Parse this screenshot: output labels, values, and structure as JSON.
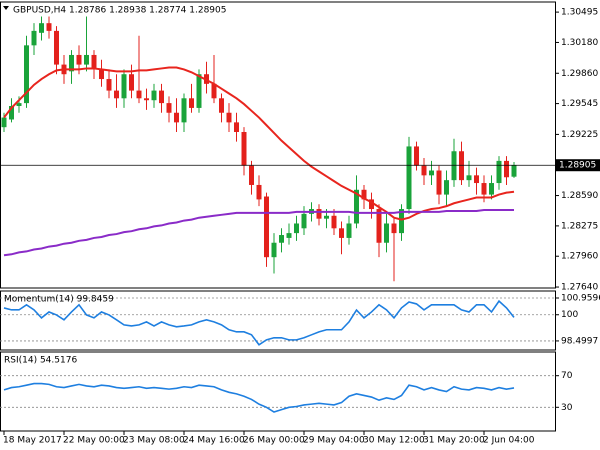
{
  "chart_data": [
    {
      "type": "candlestick",
      "title": "GBPUSD,H4 1.28786 1.28938 1.28774 1.28905",
      "categories": [
        "18 May 2017",
        null,
        null,
        null,
        null,
        null,
        null,
        null,
        "22 May 00:00",
        null,
        null,
        null,
        null,
        null,
        null,
        null,
        "23 May 08:00",
        null,
        null,
        null,
        null,
        null,
        null,
        null,
        "24 May 16:00",
        null,
        null,
        null,
        null,
        null,
        null,
        null,
        "26 May 00:00",
        null,
        null,
        null,
        null,
        null,
        null,
        null,
        "29 May 04:00",
        null,
        null,
        null,
        null,
        null,
        null,
        null,
        "30 May 12:00",
        null,
        null,
        null,
        null,
        null,
        null,
        null,
        "31 May 20:00",
        null,
        null,
        null,
        null,
        null,
        null,
        null,
        "2 Jun 04:00",
        null,
        null,
        null,
        null
      ],
      "open": [
        1.293,
        1.2938,
        1.2952,
        1.2955,
        1.3015,
        1.3028,
        1.3038,
        1.303,
        1.2995,
        1.2988,
        1.3005,
        1.2995,
        1.3005,
        1.299,
        1.298,
        1.2968,
        1.296,
        1.2985,
        1.2968,
        1.296,
        1.2958,
        1.2968,
        1.2955,
        1.2945,
        1.2935,
        1.296,
        1.295,
        1.2985,
        1.2975,
        1.296,
        1.2945,
        1.2935,
        1.2925,
        1.289,
        1.287,
        1.2858,
        1.2795,
        1.281,
        1.2815,
        1.282,
        1.2825,
        1.284,
        1.2845,
        1.2835,
        1.2838,
        1.2825,
        1.2815,
        1.283,
        1.2865,
        1.2855,
        1.2845,
        1.281,
        1.283,
        1.282,
        1.2845,
        1.291,
        1.289,
        1.288,
        1.2885,
        1.286,
        1.2875,
        1.2905,
        1.2875,
        1.288,
        1.2872,
        1.286,
        1.2872,
        1.2895,
        1.28786
      ],
      "high": [
        1.2945,
        1.296,
        1.2962,
        1.3025,
        1.3038,
        1.3045,
        1.3045,
        1.3035,
        1.3005,
        1.301,
        1.3015,
        1.3045,
        1.301,
        1.3,
        1.299,
        1.2985,
        1.299,
        1.2995,
        1.3025,
        1.297,
        1.2975,
        1.2975,
        1.2962,
        1.296,
        1.2965,
        1.2975,
        1.299,
        1.2998,
        1.3005,
        1.2965,
        1.2955,
        1.2945,
        1.293,
        1.2895,
        1.288,
        1.2862,
        1.282,
        1.2825,
        1.283,
        1.2838,
        1.2848,
        1.2852,
        1.285,
        1.2845,
        1.2845,
        1.2832,
        1.2838,
        1.288,
        1.287,
        1.2862,
        1.285,
        1.284,
        1.2835,
        1.285,
        1.292,
        1.2915,
        1.2898,
        1.2895,
        1.289,
        1.2885,
        1.2918,
        1.2915,
        1.2895,
        1.2888,
        1.288,
        1.288,
        1.29,
        1.29,
        1.28938
      ],
      "low": [
        1.2925,
        1.2935,
        1.2945,
        1.295,
        1.3005,
        1.302,
        1.3022,
        1.2985,
        1.2975,
        1.2975,
        1.2985,
        1.2988,
        1.298,
        1.2972,
        1.296,
        1.295,
        1.295,
        1.296,
        1.2955,
        1.2948,
        1.295,
        1.2945,
        1.2935,
        1.2925,
        1.2925,
        1.2945,
        1.2945,
        1.2965,
        1.2955,
        1.2935,
        1.2925,
        1.2915,
        1.288,
        1.286,
        1.2848,
        1.2785,
        1.2778,
        1.28,
        1.2808,
        1.2812,
        1.2818,
        1.2832,
        1.2828,
        1.2825,
        1.2818,
        1.2798,
        1.2808,
        1.2825,
        1.2845,
        1.2835,
        1.2795,
        1.28,
        1.277,
        1.2812,
        1.284,
        1.2885,
        1.287,
        1.287,
        1.285,
        1.2848,
        1.2868,
        1.287,
        1.2868,
        1.286,
        1.2852,
        1.2855,
        1.2865,
        1.287,
        1.28774
      ],
      "close": [
        1.294,
        1.2952,
        1.2955,
        1.3015,
        1.303,
        1.3038,
        1.303,
        1.2995,
        1.2985,
        1.3005,
        1.2995,
        1.3005,
        1.299,
        1.298,
        1.2968,
        1.296,
        1.2985,
        1.2968,
        1.296,
        1.2958,
        1.2968,
        1.2955,
        1.2945,
        1.2935,
        1.296,
        1.295,
        1.2985,
        1.2975,
        1.296,
        1.2945,
        1.2935,
        1.2925,
        1.289,
        1.287,
        1.2855,
        1.2795,
        1.281,
        1.2818,
        1.282,
        1.283,
        1.284,
        1.2845,
        1.2835,
        1.2838,
        1.2825,
        1.2815,
        1.283,
        1.2865,
        1.2855,
        1.2845,
        1.281,
        1.283,
        1.282,
        1.2845,
        1.291,
        1.289,
        1.288,
        1.2885,
        1.286,
        1.2875,
        1.2905,
        1.2875,
        1.288,
        1.2872,
        1.286,
        1.2872,
        1.2895,
        1.2878,
        1.28905
      ],
      "up_color": "#1aa33a",
      "down_color": "#e3211c",
      "lines": [
        {
          "color": "#e8251e",
          "values": [
            1.294,
            1.295,
            1.2958,
            1.2966,
            1.2974,
            1.298,
            1.2985,
            1.2989,
            1.299,
            1.299,
            1.299,
            1.2991,
            1.2991,
            1.299,
            1.2989,
            1.2988,
            1.2988,
            1.2988,
            1.2989,
            1.2989,
            1.299,
            1.2991,
            1.2992,
            1.2992,
            1.299,
            1.2987,
            1.2983,
            1.2979,
            1.2975,
            1.297,
            1.2965,
            1.296,
            1.2954,
            1.2947,
            1.294,
            1.2932,
            1.2924,
            1.2916,
            1.2909,
            1.2902,
            1.2895,
            1.2889,
            1.2884,
            1.2879,
            1.2874,
            1.2869,
            1.2865,
            1.2861,
            1.2856,
            1.2852,
            1.2847,
            1.2842,
            1.2836,
            1.2834,
            1.2836,
            1.284,
            1.2843,
            1.2845,
            1.2846,
            1.2848,
            1.2851,
            1.2853,
            1.2855,
            1.2857,
            1.2857,
            1.2857,
            1.286,
            1.2862,
            1.2863
          ]
        },
        {
          "color": "#8a2bc8",
          "values": [
            1.2797,
            1.2798,
            1.28,
            1.2801,
            1.2803,
            1.2804,
            1.2806,
            1.2807,
            1.2809,
            1.281,
            1.2812,
            1.2813,
            1.2815,
            1.2816,
            1.2818,
            1.2819,
            1.2821,
            1.2822,
            1.2824,
            1.2825,
            1.2827,
            1.2828,
            1.283,
            1.2831,
            1.2833,
            1.2834,
            1.2836,
            1.2837,
            1.2838,
            1.2839,
            1.284,
            1.2841,
            1.2841,
            1.2841,
            1.2841,
            1.2841,
            1.2841,
            1.2841,
            1.2841,
            1.2842,
            1.2842,
            1.2842,
            1.2842,
            1.2842,
            1.2842,
            1.2842,
            1.2842,
            1.2841,
            1.2841,
            1.2841,
            1.2841,
            1.2841,
            1.2841,
            1.2842,
            1.2842,
            1.2842,
            1.2842,
            1.2842,
            1.2842,
            1.2843,
            1.2843,
            1.2843,
            1.2843,
            1.2843,
            1.2844,
            1.2844,
            1.2844,
            1.2844,
            1.2844
          ]
        }
      ],
      "current_price": {
        "value": 1.28905,
        "label": "1.28905"
      },
      "ylim": [
        1.2763,
        1.306
      ],
      "yticks": [
        {
          "value": 1.30495,
          "label": "1.30495"
        },
        {
          "value": 1.3018,
          "label": "1.30180"
        },
        {
          "value": 1.2986,
          "label": "1.29860"
        },
        {
          "value": 1.29545,
          "label": "1.29545"
        },
        {
          "value": 1.29225,
          "label": "1.29225"
        },
        {
          "value": 1.2859,
          "label": "1.28590"
        },
        {
          "value": 1.28275,
          "label": "1.28275"
        },
        {
          "value": 1.2796,
          "label": "1.27960"
        },
        {
          "value": 1.2764,
          "label": "1.27640"
        }
      ]
    },
    {
      "type": "line",
      "title": "Momentum(14) 99.8459",
      "color": "#1e7fe0",
      "values": [
        100.39,
        100.28,
        100.28,
        100.57,
        100.28,
        99.82,
        100.16,
        99.99,
        99.71,
        100.16,
        100.57,
        99.99,
        99.82,
        100.16,
        99.99,
        99.71,
        99.42,
        99.36,
        99.42,
        99.59,
        99.36,
        99.59,
        99.42,
        99.31,
        99.36,
        99.42,
        99.59,
        99.71,
        99.59,
        99.42,
        99.14,
        99.02,
        99.02,
        98.85,
        98.28,
        98.56,
        98.68,
        98.68,
        98.56,
        98.56,
        98.68,
        98.85,
        99.02,
        99.14,
        99.14,
        99.14,
        99.59,
        100.27,
        99.82,
        100.16,
        100.57,
        100.28,
        99.82,
        100.39,
        100.73,
        100.62,
        100.28,
        100.57,
        100.57,
        100.57,
        100.57,
        100.28,
        100.16,
        100.57,
        100.57,
        100.16,
        100.78,
        100.39,
        99.8459
      ],
      "ylim": [
        97.98,
        101.36
      ],
      "yticks": [
        100.9596,
        100,
        98.4997
      ],
      "grid": "dotted"
    },
    {
      "type": "line",
      "title": "RSI(14) 54.5176",
      "color": "#1e7fe0",
      "values": [
        52,
        55,
        56,
        58,
        60,
        60,
        59,
        56,
        55,
        57,
        59,
        57,
        56,
        58,
        57,
        55,
        54,
        55,
        56,
        54,
        55,
        54,
        53,
        54,
        56,
        55,
        58,
        57,
        56,
        52,
        49,
        47,
        44,
        40,
        34,
        30,
        24,
        27,
        30,
        31,
        33,
        34,
        35,
        34,
        33,
        36,
        44,
        47,
        45,
        43,
        39,
        42,
        40,
        45,
        58,
        56,
        52,
        55,
        52,
        50,
        56,
        53,
        52,
        55,
        54,
        52,
        55,
        53,
        54.5176
      ],
      "ylim": [
        0,
        100
      ],
      "yticks": [
        70,
        30
      ],
      "grid": "dotted"
    }
  ]
}
